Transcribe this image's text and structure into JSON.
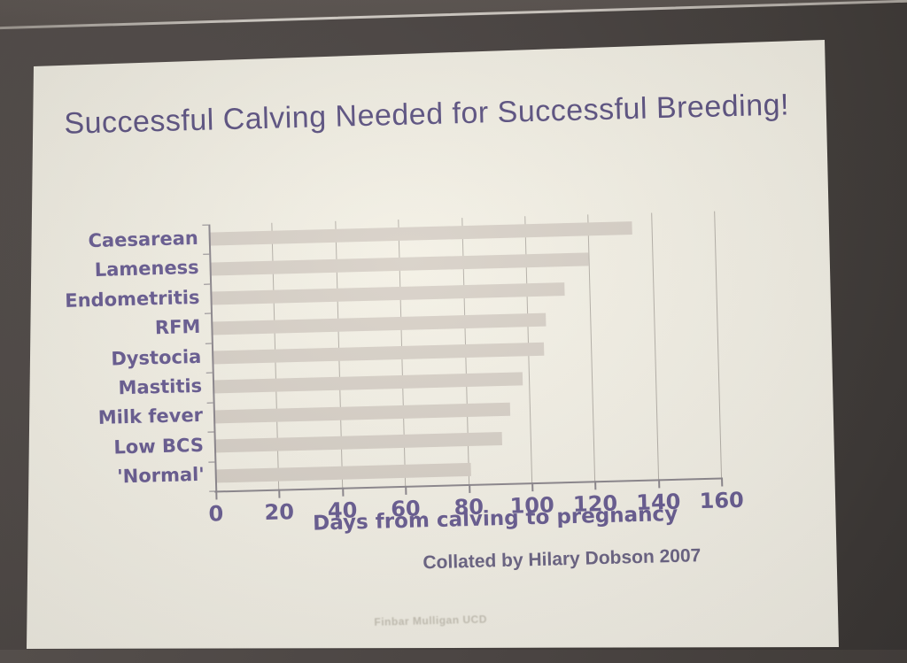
{
  "slide": {
    "title": "Successful Calving Needed for Successful Breeding!",
    "caption": "Collated by Hilary Dobson 2007",
    "footer": "Finbar Mulligan UCD"
  },
  "chart_data": {
    "type": "bar",
    "orientation": "horizontal",
    "title": "",
    "categories": [
      "Caesarean",
      "Lameness",
      "Endometritis",
      "RFM",
      "Dystocia",
      "Mastitis",
      "Milk fever",
      "Low BCS",
      "'Normal'"
    ],
    "values": [
      134,
      120,
      112,
      106,
      105,
      98,
      94,
      91,
      81
    ],
    "xlabel": "Days from calving to pregnancy",
    "ylabel": "",
    "xlim": [
      0,
      160
    ],
    "xticks": [
      0,
      20,
      40,
      60,
      80,
      100,
      120,
      140,
      160
    ],
    "grid": true,
    "legend_position": "none"
  },
  "colors": {
    "slide_bg": "#f4f1e6",
    "title": "#5f5584",
    "labels": "#6b5f94",
    "bar": "#d9d2c9",
    "grid": "#b7b2aa",
    "axis": "#8f8a90",
    "caption": "#6e6787",
    "footer": "#c2bdb0"
  }
}
